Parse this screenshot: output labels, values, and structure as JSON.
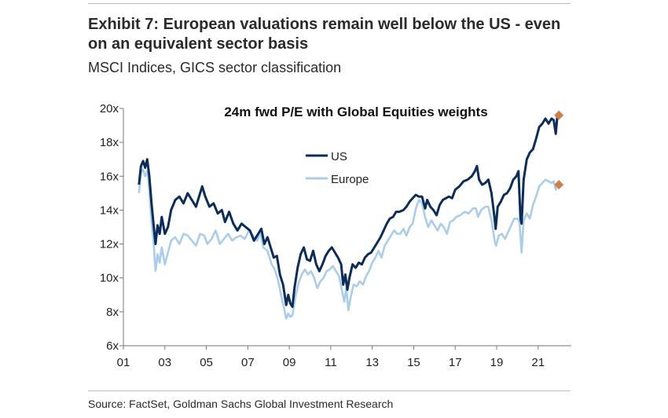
{
  "exhibit": {
    "title": "Exhibit 7: European valuations remain well below the US - even on an equivalent sector basis",
    "subtitle": "MSCI Indices, GICS sector classification",
    "source": "Source: FactSet, Goldman Sachs Global Investment Research"
  },
  "chart_data": {
    "type": "line",
    "title": "24m fwd P/E with Global Equities weights",
    "xlabel": "",
    "ylabel": "",
    "xlim": [
      2001,
      2022.6
    ],
    "ylim": [
      6,
      20
    ],
    "x_ticks": [
      "01",
      "03",
      "05",
      "07",
      "09",
      "11",
      "13",
      "15",
      "17",
      "19",
      "21"
    ],
    "y_ticks": [
      "6x",
      "8x",
      "10x",
      "12x",
      "14x",
      "16x",
      "18x",
      "20x"
    ],
    "grid": false,
    "legend_position": "upper-center",
    "series": [
      {
        "name": "US",
        "color": "#0b2d5c",
        "points": [
          [
            2001.75,
            15.5
          ],
          [
            2001.85,
            16.6
          ],
          [
            2001.95,
            16.9
          ],
          [
            2002.05,
            16.5
          ],
          [
            2002.15,
            17.0
          ],
          [
            2002.25,
            16.0
          ],
          [
            2002.35,
            14.5
          ],
          [
            2002.45,
            13.2
          ],
          [
            2002.55,
            12.0
          ],
          [
            2002.65,
            13.1
          ],
          [
            2002.75,
            12.6
          ],
          [
            2002.85,
            13.6
          ],
          [
            2003.0,
            12.6
          ],
          [
            2003.15,
            13.0
          ],
          [
            2003.3,
            14.0
          ],
          [
            2003.5,
            14.6
          ],
          [
            2003.7,
            14.8
          ],
          [
            2003.9,
            14.4
          ],
          [
            2004.1,
            15.0
          ],
          [
            2004.3,
            14.6
          ],
          [
            2004.5,
            14.2
          ],
          [
            2004.65,
            14.8
          ],
          [
            2004.8,
            15.4
          ],
          [
            2004.95,
            14.8
          ],
          [
            2005.15,
            14.2
          ],
          [
            2005.35,
            14.4
          ],
          [
            2005.55,
            13.8
          ],
          [
            2005.75,
            14.0
          ],
          [
            2005.9,
            13.3
          ],
          [
            2006.1,
            13.9
          ],
          [
            2006.3,
            13.2
          ],
          [
            2006.5,
            12.8
          ],
          [
            2006.7,
            13.2
          ],
          [
            2006.9,
            13.0
          ],
          [
            2007.1,
            12.8
          ],
          [
            2007.3,
            12.2
          ],
          [
            2007.5,
            12.6
          ],
          [
            2007.65,
            12.9
          ],
          [
            2007.8,
            12.0
          ],
          [
            2007.95,
            12.4
          ],
          [
            2008.1,
            11.8
          ],
          [
            2008.25,
            11.2
          ],
          [
            2008.4,
            11.3
          ],
          [
            2008.55,
            10.2
          ],
          [
            2008.7,
            9.6
          ],
          [
            2008.85,
            8.4
          ],
          [
            2008.95,
            9.0
          ],
          [
            2009.05,
            8.5
          ],
          [
            2009.15,
            8.3
          ],
          [
            2009.25,
            9.4
          ],
          [
            2009.4,
            10.6
          ],
          [
            2009.55,
            11.4
          ],
          [
            2009.7,
            11.8
          ],
          [
            2009.85,
            11.1
          ],
          [
            2010.0,
            11.0
          ],
          [
            2010.15,
            11.6
          ],
          [
            2010.3,
            10.8
          ],
          [
            2010.45,
            10.4
          ],
          [
            2010.6,
            10.8
          ],
          [
            2010.75,
            11.3
          ],
          [
            2010.9,
            11.6
          ],
          [
            2011.05,
            11.8
          ],
          [
            2011.2,
            11.5
          ],
          [
            2011.35,
            11.2
          ],
          [
            2011.5,
            10.8
          ],
          [
            2011.6,
            9.6
          ],
          [
            2011.7,
            10.2
          ],
          [
            2011.8,
            9.3
          ],
          [
            2011.9,
            10.0
          ],
          [
            2012.05,
            10.8
          ],
          [
            2012.2,
            10.6
          ],
          [
            2012.35,
            10.9
          ],
          [
            2012.5,
            10.8
          ],
          [
            2012.65,
            11.2
          ],
          [
            2012.8,
            11.4
          ],
          [
            2012.95,
            11.5
          ],
          [
            2013.1,
            11.8
          ],
          [
            2013.25,
            12.1
          ],
          [
            2013.4,
            12.4
          ],
          [
            2013.55,
            12.8
          ],
          [
            2013.7,
            13.2
          ],
          [
            2013.85,
            13.5
          ],
          [
            2014.0,
            13.6
          ],
          [
            2014.15,
            13.9
          ],
          [
            2014.3,
            13.9
          ],
          [
            2014.5,
            14.0
          ],
          [
            2014.65,
            14.2
          ],
          [
            2014.8,
            14.5
          ],
          [
            2014.95,
            14.7
          ],
          [
            2015.1,
            14.9
          ],
          [
            2015.25,
            14.8
          ],
          [
            2015.4,
            14.8
          ],
          [
            2015.55,
            14.1
          ],
          [
            2015.65,
            14.6
          ],
          [
            2015.8,
            14.2
          ],
          [
            2015.95,
            14.0
          ],
          [
            2016.1,
            13.7
          ],
          [
            2016.25,
            14.3
          ],
          [
            2016.4,
            14.6
          ],
          [
            2016.55,
            14.7
          ],
          [
            2016.7,
            14.8
          ],
          [
            2016.85,
            14.7
          ],
          [
            2017.0,
            15.2
          ],
          [
            2017.2,
            15.4
          ],
          [
            2017.4,
            15.7
          ],
          [
            2017.6,
            15.8
          ],
          [
            2017.8,
            16.0
          ],
          [
            2017.95,
            16.3
          ],
          [
            2018.05,
            16.6
          ],
          [
            2018.15,
            15.8
          ],
          [
            2018.3,
            15.5
          ],
          [
            2018.45,
            15.6
          ],
          [
            2018.6,
            15.8
          ],
          [
            2018.75,
            15.0
          ],
          [
            2018.9,
            13.5
          ],
          [
            2018.95,
            12.9
          ],
          [
            2019.05,
            14.2
          ],
          [
            2019.2,
            14.5
          ],
          [
            2019.35,
            14.9
          ],
          [
            2019.5,
            15.0
          ],
          [
            2019.65,
            15.3
          ],
          [
            2019.8,
            15.8
          ],
          [
            2019.95,
            16.0
          ],
          [
            2020.05,
            16.3
          ],
          [
            2020.15,
            13.5
          ],
          [
            2020.2,
            13.2
          ],
          [
            2020.3,
            15.8
          ],
          [
            2020.45,
            17.0
          ],
          [
            2020.6,
            17.4
          ],
          [
            2020.75,
            17.6
          ],
          [
            2020.9,
            18.2
          ],
          [
            2021.05,
            18.9
          ],
          [
            2021.2,
            19.1
          ],
          [
            2021.35,
            19.4
          ],
          [
            2021.5,
            19.1
          ],
          [
            2021.65,
            19.4
          ],
          [
            2021.75,
            19.3
          ],
          [
            2021.85,
            18.5
          ],
          [
            2021.92,
            19.5
          ]
        ],
        "latest_marker": [
          2022.0,
          19.6
        ]
      },
      {
        "name": "Europe",
        "color": "#a9cdeb",
        "points": [
          [
            2001.75,
            15.0
          ],
          [
            2001.85,
            16.2
          ],
          [
            2001.95,
            16.4
          ],
          [
            2002.05,
            16.0
          ],
          [
            2002.15,
            16.3
          ],
          [
            2002.25,
            15.2
          ],
          [
            2002.35,
            13.4
          ],
          [
            2002.45,
            12.2
          ],
          [
            2002.55,
            10.4
          ],
          [
            2002.65,
            11.4
          ],
          [
            2002.75,
            10.9
          ],
          [
            2002.85,
            11.8
          ],
          [
            2003.0,
            10.8
          ],
          [
            2003.15,
            11.5
          ],
          [
            2003.3,
            12.2
          ],
          [
            2003.5,
            12.4
          ],
          [
            2003.7,
            12.0
          ],
          [
            2003.9,
            12.6
          ],
          [
            2004.1,
            12.5
          ],
          [
            2004.3,
            12.2
          ],
          [
            2004.5,
            11.9
          ],
          [
            2004.7,
            12.6
          ],
          [
            2004.9,
            12.5
          ],
          [
            2005.05,
            12.0
          ],
          [
            2005.25,
            12.3
          ],
          [
            2005.45,
            12.8
          ],
          [
            2005.65,
            12.0
          ],
          [
            2005.85,
            12.3
          ],
          [
            2006.05,
            12.6
          ],
          [
            2006.25,
            12.2
          ],
          [
            2006.45,
            12.4
          ],
          [
            2006.65,
            12.5
          ],
          [
            2006.85,
            12.3
          ],
          [
            2007.05,
            12.8
          ],
          [
            2007.25,
            12.5
          ],
          [
            2007.45,
            12.2
          ],
          [
            2007.6,
            12.7
          ],
          [
            2007.75,
            11.8
          ],
          [
            2007.95,
            11.6
          ],
          [
            2008.15,
            10.8
          ],
          [
            2008.3,
            10.5
          ],
          [
            2008.45,
            9.9
          ],
          [
            2008.6,
            9.0
          ],
          [
            2008.75,
            8.2
          ],
          [
            2008.85,
            7.6
          ],
          [
            2008.95,
            7.9
          ],
          [
            2009.05,
            7.7
          ],
          [
            2009.15,
            7.8
          ],
          [
            2009.3,
            8.9
          ],
          [
            2009.45,
            9.7
          ],
          [
            2009.6,
            10.2
          ],
          [
            2009.75,
            10.5
          ],
          [
            2009.9,
            10.2
          ],
          [
            2010.05,
            10.4
          ],
          [
            2010.2,
            10.0
          ],
          [
            2010.35,
            9.4
          ],
          [
            2010.5,
            9.8
          ],
          [
            2010.65,
            10.0
          ],
          [
            2010.8,
            10.4
          ],
          [
            2010.95,
            10.5
          ],
          [
            2011.1,
            10.7
          ],
          [
            2011.25,
            10.4
          ],
          [
            2011.4,
            10.1
          ],
          [
            2011.55,
            9.2
          ],
          [
            2011.65,
            8.6
          ],
          [
            2011.75,
            9.4
          ],
          [
            2011.85,
            8.1
          ],
          [
            2011.95,
            8.8
          ],
          [
            2012.1,
            9.6
          ],
          [
            2012.25,
            9.5
          ],
          [
            2012.4,
            9.8
          ],
          [
            2012.55,
            9.6
          ],
          [
            2012.7,
            10.1
          ],
          [
            2012.85,
            10.4
          ],
          [
            2013.0,
            10.9
          ],
          [
            2013.15,
            11.2
          ],
          [
            2013.3,
            11.6
          ],
          [
            2013.45,
            11.2
          ],
          [
            2013.6,
            11.9
          ],
          [
            2013.75,
            12.2
          ],
          [
            2013.9,
            12.5
          ],
          [
            2014.05,
            12.8
          ],
          [
            2014.2,
            12.6
          ],
          [
            2014.35,
            12.6
          ],
          [
            2014.5,
            12.9
          ],
          [
            2014.65,
            12.5
          ],
          [
            2014.8,
            13.0
          ],
          [
            2014.95,
            13.2
          ],
          [
            2015.1,
            14.1
          ],
          [
            2015.25,
            14.6
          ],
          [
            2015.4,
            14.4
          ],
          [
            2015.55,
            13.6
          ],
          [
            2015.7,
            13.0
          ],
          [
            2015.85,
            13.4
          ],
          [
            2016.0,
            13.1
          ],
          [
            2016.15,
            12.8
          ],
          [
            2016.3,
            13.2
          ],
          [
            2016.45,
            13.0
          ],
          [
            2016.6,
            12.6
          ],
          [
            2016.75,
            13.3
          ],
          [
            2016.9,
            13.4
          ],
          [
            2017.05,
            13.6
          ],
          [
            2017.25,
            13.7
          ],
          [
            2017.45,
            13.9
          ],
          [
            2017.65,
            13.8
          ],
          [
            2017.85,
            14.1
          ],
          [
            2018.0,
            14.1
          ],
          [
            2018.1,
            13.6
          ],
          [
            2018.25,
            14.0
          ],
          [
            2018.45,
            14.2
          ],
          [
            2018.6,
            14.2
          ],
          [
            2018.75,
            13.4
          ],
          [
            2018.9,
            12.2
          ],
          [
            2018.97,
            11.9
          ],
          [
            2019.1,
            12.5
          ],
          [
            2019.25,
            12.6
          ],
          [
            2019.4,
            12.3
          ],
          [
            2019.55,
            12.7
          ],
          [
            2019.7,
            13.1
          ],
          [
            2019.85,
            13.5
          ],
          [
            2020.0,
            13.5
          ],
          [
            2020.1,
            13.3
          ],
          [
            2020.2,
            11.5
          ],
          [
            2020.3,
            13.4
          ],
          [
            2020.45,
            13.8
          ],
          [
            2020.6,
            13.5
          ],
          [
            2020.75,
            14.3
          ],
          [
            2020.9,
            14.8
          ],
          [
            2021.05,
            15.4
          ],
          [
            2021.2,
            15.6
          ],
          [
            2021.35,
            15.8
          ],
          [
            2021.5,
            15.7
          ],
          [
            2021.65,
            15.6
          ],
          [
            2021.75,
            15.7
          ],
          [
            2021.85,
            15.2
          ],
          [
            2021.92,
            15.5
          ]
        ],
        "latest_marker": [
          2022.0,
          15.5
        ]
      }
    ],
    "marker_color": "#e07b2c"
  }
}
